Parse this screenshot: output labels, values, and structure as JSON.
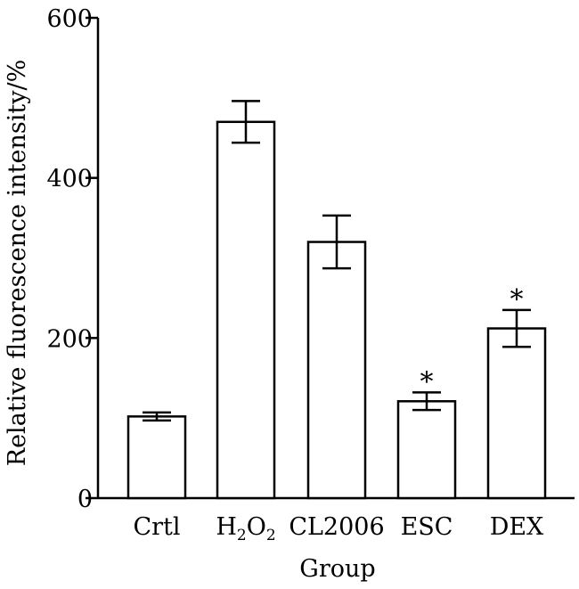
{
  "chart_data": {
    "type": "bar",
    "categories": [
      "Crtl",
      "H2O2",
      "CL2006",
      "ESC",
      "DEX"
    ],
    "values": [
      102,
      470,
      320,
      121,
      212
    ],
    "error": [
      5,
      26,
      33,
      11,
      23
    ],
    "significance": [
      "",
      "",
      "",
      "*",
      "*"
    ],
    "xlabel": "Group",
    "ylabel": "Relative fluorescence intensity/%",
    "ylim": [
      0,
      600
    ],
    "yticks": [
      0,
      200,
      400,
      600
    ],
    "grid": false,
    "colors": {
      "bar_fill": "#ffffff",
      "stroke": "#000000"
    }
  }
}
